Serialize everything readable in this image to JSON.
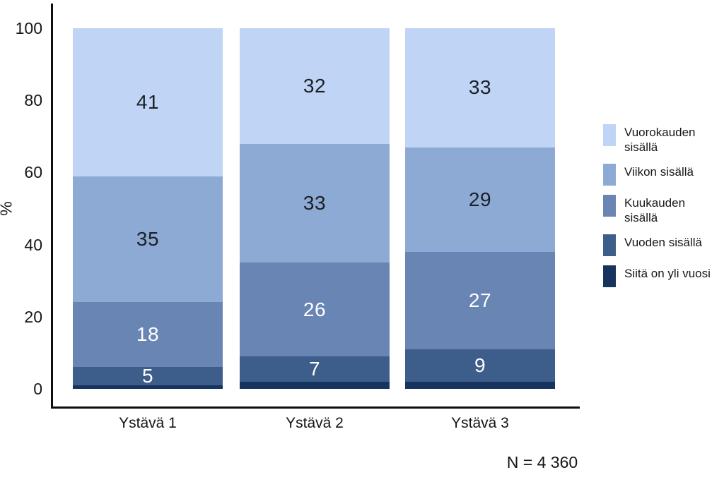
{
  "chart_data": {
    "type": "bar",
    "stacked": true,
    "orientation": "vertical",
    "categories": [
      "Ystävä 1",
      "Ystävä 2",
      "Ystävä 3"
    ],
    "series": [
      {
        "name": "Vuorokauden sisällä",
        "color": "#c0d4f5",
        "label_color": "#1d2026",
        "show_labels": true,
        "values": [
          41,
          32,
          33
        ]
      },
      {
        "name": "Viikon sisällä",
        "color": "#8caad4",
        "label_color": "#1d2026",
        "show_labels": true,
        "values": [
          35,
          33,
          29
        ]
      },
      {
        "name": "Kuukauden sisällä",
        "color": "#6985b4",
        "label_color": "#ffffff",
        "show_labels": true,
        "values": [
          18,
          26,
          27
        ]
      },
      {
        "name": "Vuoden sisällä",
        "color": "#3d5d8b",
        "label_color": "#ffffff",
        "show_labels": true,
        "values": [
          5,
          7,
          9
        ]
      },
      {
        "name": "Siitä on yli vuosi",
        "color": "#17345e",
        "label_color": "#ffffff",
        "show_labels": false,
        "values": [
          1,
          2,
          2
        ]
      }
    ],
    "ylabel": "%",
    "yticks": [
      0,
      20,
      40,
      60,
      80,
      100
    ],
    "ylim": [
      0,
      100
    ],
    "grid": false,
    "legend_position": "right",
    "note": "N = 4 360",
    "axis_color": "#0d0d0d"
  }
}
